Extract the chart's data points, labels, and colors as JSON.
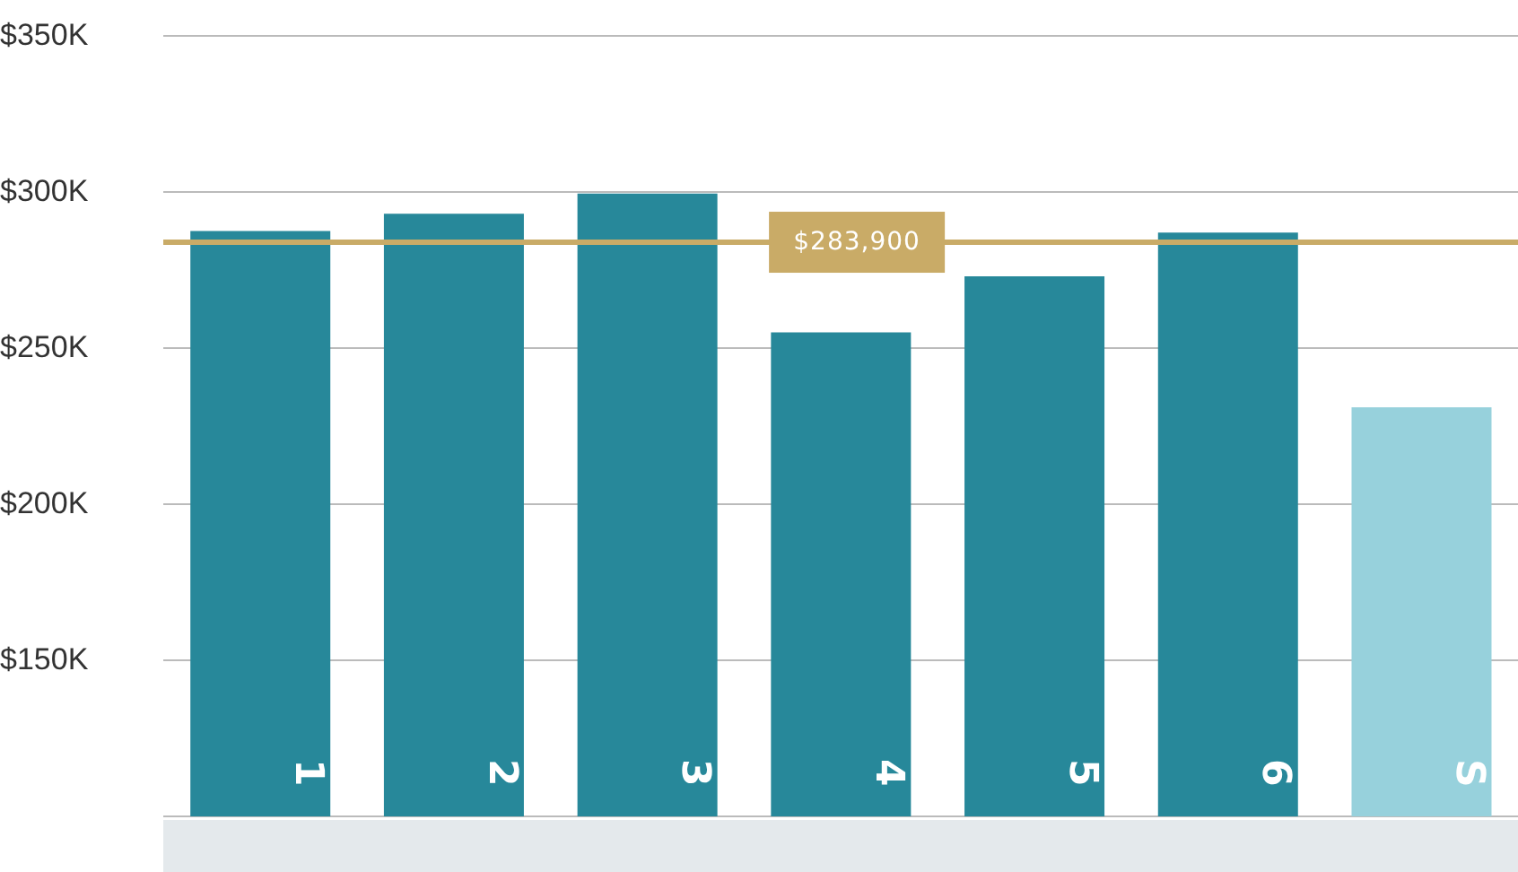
{
  "chart_data": {
    "type": "bar",
    "categories": [
      "1",
      "2",
      "3",
      "4",
      "5",
      "6",
      "S"
    ],
    "values": [
      287500,
      293000,
      299500,
      255000,
      273000,
      287000,
      231000
    ],
    "colors": [
      "#27889a",
      "#27889a",
      "#27889a",
      "#27889a",
      "#27889a",
      "#27889a",
      "#97d1dc"
    ],
    "ylim": [
      100000,
      350000
    ],
    "yticks": [
      {
        "value": 150000,
        "label": "$150K"
      },
      {
        "value": 200000,
        "label": "$200K"
      },
      {
        "value": 250000,
        "label": "$250K"
      },
      {
        "value": 300000,
        "label": "$300K"
      },
      {
        "value": 350000,
        "label": "$350K"
      }
    ],
    "grid": "y",
    "legend": false,
    "ref_lines": [
      {
        "axis": "y",
        "value": 283900,
        "label": "$283,900",
        "color": "#c9ab67"
      }
    ]
  }
}
